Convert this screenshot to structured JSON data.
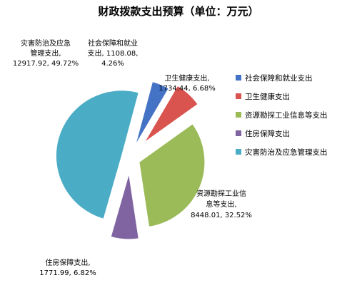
{
  "chart_data": {
    "type": "pie",
    "title": "财政拨款支出预算（单位：万元）",
    "series": [
      {
        "name": "",
        "slices": [
          {
            "label": "社会保障和就业支出",
            "value": 1108.08,
            "percent": "4.26%",
            "color": "#4472C4",
            "callout": [
              "社会保障和就业",
              "支出, 1108.08,",
              "4.26%"
            ]
          },
          {
            "label": "卫生健康支出",
            "value": 1734.44,
            "percent": "6.68%",
            "color": "#D9534F",
            "callout": [
              "卫生健康支出,",
              "1734.44, 6.68%"
            ]
          },
          {
            "label": "资源勘探工业信息等支出",
            "value": 8448.01,
            "percent": "32.52%",
            "color": "#9BBB59",
            "callout": [
              "资源勘探工业信",
              "息等支出,",
              "8448.01, 32.52%"
            ]
          },
          {
            "label": "住房保障支出",
            "value": 1771.99,
            "percent": "6.82%",
            "color": "#8064A2",
            "callout": [
              "住房保障支出,",
              "1771.99, 6.82%"
            ]
          },
          {
            "label": "灾害防治及应急管理支出",
            "value": 12917.92,
            "percent": "49.72%",
            "color": "#4BACC6",
            "callout": [
              "灾害防治及应急",
              "管理支出,",
              "12917.92, 49.72%"
            ]
          }
        ]
      }
    ],
    "legend": {
      "position": "right",
      "items": [
        "社会保障和就业支出",
        "卫生健康支出",
        "资源勘探工业信息等支出",
        "住房保障支出",
        "灾害防治及应急管理支出"
      ]
    }
  }
}
